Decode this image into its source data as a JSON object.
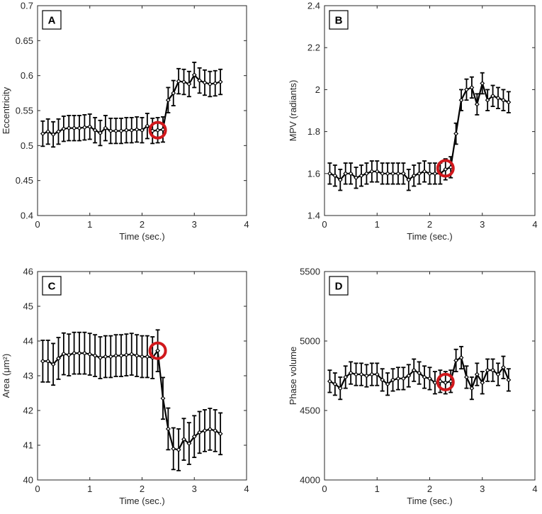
{
  "figure": {
    "marker_color": "#d0181c"
  },
  "chart_data": [
    {
      "type": "line",
      "panel": "A",
      "xlabel": "Time (sec.)",
      "ylabel": "Eccentricity",
      "xlim": [
        0,
        4
      ],
      "ylim": [
        0.4,
        0.7
      ],
      "xticks": [
        0,
        1,
        2,
        3,
        4
      ],
      "yticks": [
        0.4,
        0.45,
        0.5,
        0.55,
        0.6,
        0.65,
        0.7
      ],
      "x": [
        0.1,
        0.2,
        0.3,
        0.4,
        0.5,
        0.6,
        0.7,
        0.8,
        0.9,
        1.0,
        1.1,
        1.2,
        1.3,
        1.4,
        1.5,
        1.6,
        1.7,
        1.8,
        1.9,
        2.0,
        2.1,
        2.2,
        2.3,
        2.4,
        2.5,
        2.6,
        2.7,
        2.8,
        2.9,
        3.0,
        3.1,
        3.2,
        3.3,
        3.4,
        3.5
      ],
      "y": [
        0.517,
        0.52,
        0.516,
        0.52,
        0.524,
        0.525,
        0.525,
        0.525,
        0.526,
        0.527,
        0.522,
        0.518,
        0.525,
        0.521,
        0.521,
        0.521,
        0.522,
        0.522,
        0.523,
        0.522,
        0.528,
        0.521,
        0.522,
        0.523,
        0.565,
        0.575,
        0.592,
        0.591,
        0.588,
        0.601,
        0.593,
        0.59,
        0.588,
        0.589,
        0.591
      ],
      "err": 0.018,
      "marker": {
        "x": 2.3,
        "y": 0.522
      }
    },
    {
      "type": "line",
      "panel": "B",
      "xlabel": "Time (sec.)",
      "ylabel": "MPV (radiants)",
      "xlim": [
        0,
        4
      ],
      "ylim": [
        1.4,
        2.4
      ],
      "xticks": [
        0,
        1,
        2,
        3,
        4
      ],
      "yticks": [
        1.4,
        1.6,
        1.8,
        2.0,
        2.2,
        2.4
      ],
      "yticklabels": [
        "1.4",
        "1.6",
        "1.8",
        "2",
        "2.2",
        "2.4"
      ],
      "x": [
        0.1,
        0.2,
        0.3,
        0.4,
        0.5,
        0.6,
        0.7,
        0.8,
        0.9,
        1.0,
        1.1,
        1.2,
        1.3,
        1.4,
        1.5,
        1.6,
        1.7,
        1.8,
        1.9,
        2.0,
        2.1,
        2.2,
        2.3,
        2.4,
        2.5,
        2.6,
        2.7,
        2.8,
        2.9,
        3.0,
        3.1,
        3.2,
        3.3,
        3.4,
        3.5
      ],
      "y": [
        1.6,
        1.59,
        1.57,
        1.6,
        1.6,
        1.58,
        1.59,
        1.6,
        1.61,
        1.61,
        1.6,
        1.6,
        1.6,
        1.6,
        1.6,
        1.57,
        1.59,
        1.6,
        1.61,
        1.6,
        1.6,
        1.6,
        1.62,
        1.63,
        1.79,
        1.95,
        2.0,
        2.01,
        1.93,
        2.03,
        1.95,
        1.97,
        1.96,
        1.95,
        1.94
      ],
      "err": 0.05,
      "marker": {
        "x": 2.3,
        "y": 1.625
      }
    },
    {
      "type": "line",
      "panel": "C",
      "xlabel": "Time (sec.)",
      "ylabel": "Area (μm²)",
      "xlim": [
        0,
        4
      ],
      "ylim": [
        40,
        46
      ],
      "xticks": [
        0,
        1,
        2,
        3,
        4
      ],
      "yticks": [
        40,
        41,
        42,
        43,
        44,
        45,
        46
      ],
      "x": [
        0.1,
        0.2,
        0.3,
        0.4,
        0.5,
        0.6,
        0.7,
        0.8,
        0.9,
        1.0,
        1.1,
        1.2,
        1.3,
        1.4,
        1.5,
        1.6,
        1.7,
        1.8,
        1.9,
        2.0,
        2.1,
        2.2,
        2.3,
        2.4,
        2.5,
        2.6,
        2.7,
        2.8,
        2.9,
        3.0,
        3.1,
        3.2,
        3.3,
        3.4,
        3.5
      ],
      "y": [
        43.42,
        43.42,
        43.33,
        43.5,
        43.63,
        43.6,
        43.65,
        43.65,
        43.65,
        43.62,
        43.58,
        43.52,
        43.55,
        43.55,
        43.58,
        43.58,
        43.6,
        43.62,
        43.58,
        43.55,
        43.55,
        43.52,
        43.72,
        42.35,
        41.47,
        40.9,
        40.87,
        41.17,
        41.05,
        41.25,
        41.37,
        41.42,
        41.46,
        41.42,
        41.33
      ],
      "err": 0.6,
      "marker": {
        "x": 2.3,
        "y": 43.72
      }
    },
    {
      "type": "line",
      "panel": "D",
      "xlabel": "Time (sec.)",
      "ylabel": "Phase volume",
      "xlim": [
        0,
        4
      ],
      "ylim": [
        4000,
        5500
      ],
      "xticks": [
        0,
        1,
        2,
        3,
        4
      ],
      "yticks": [
        4000,
        4500,
        5000,
        5500
      ],
      "x": [
        0.1,
        0.2,
        0.3,
        0.4,
        0.5,
        0.6,
        0.7,
        0.8,
        0.9,
        1.0,
        1.1,
        1.2,
        1.3,
        1.4,
        1.5,
        1.6,
        1.7,
        1.8,
        1.9,
        2.0,
        2.1,
        2.2,
        2.3,
        2.4,
        2.5,
        2.6,
        2.7,
        2.8,
        2.9,
        3.0,
        3.1,
        3.2,
        3.3,
        3.4,
        3.5
      ],
      "y": [
        4710,
        4690,
        4660,
        4740,
        4770,
        4760,
        4760,
        4750,
        4760,
        4760,
        4720,
        4690,
        4720,
        4730,
        4730,
        4750,
        4790,
        4770,
        4740,
        4730,
        4700,
        4710,
        4700,
        4710,
        4860,
        4880,
        4740,
        4660,
        4760,
        4700,
        4790,
        4790,
        4760,
        4810,
        4720
      ],
      "err": 80,
      "marker": {
        "x": 2.3,
        "y": 4705
      }
    }
  ]
}
